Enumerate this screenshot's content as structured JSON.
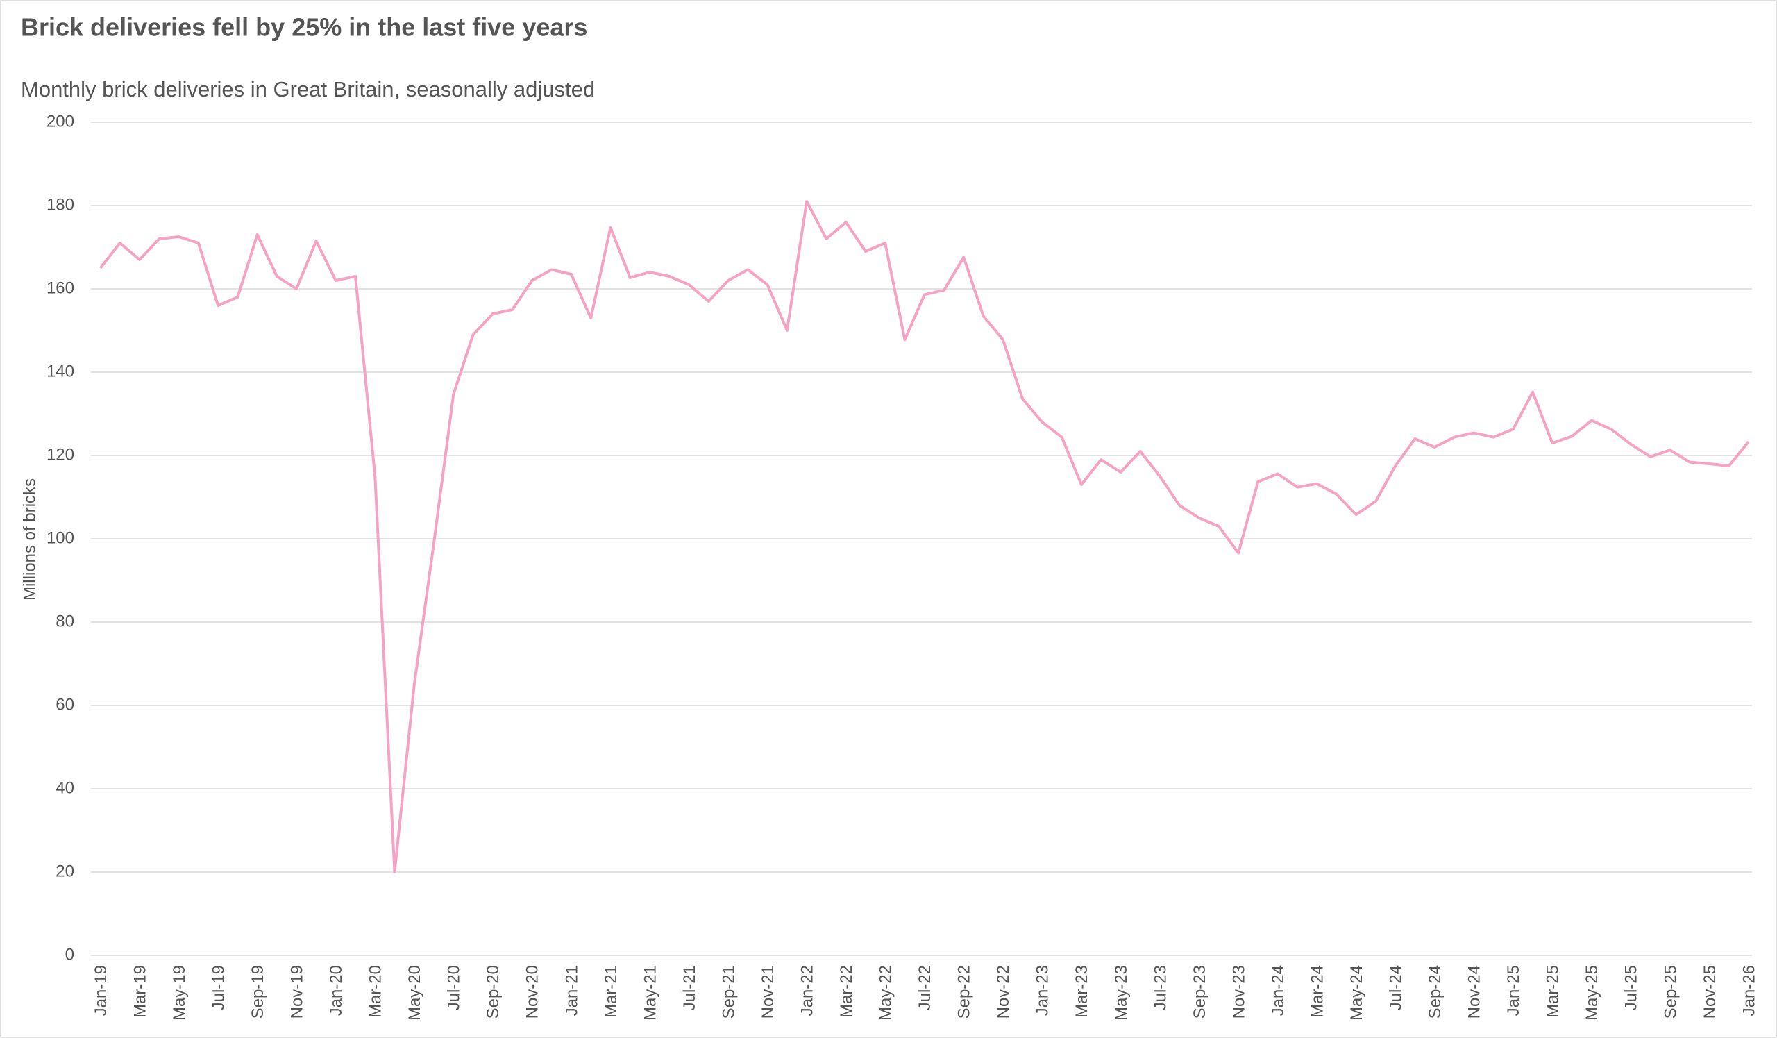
{
  "chart_data": {
    "type": "line",
    "title": "Brick deliveries fell by 25% in the last five years",
    "subtitle": "Monthly brick deliveries in Great Britain, seasonally adjusted",
    "y_label": "Millions of bricks",
    "color": "#f4a3c4",
    "grid": true,
    "ylim": [
      0,
      200
    ],
    "yticks": [
      0,
      20,
      40,
      60,
      80,
      100,
      120,
      140,
      160,
      180,
      200
    ],
    "categories": [
      "Jan-19",
      null,
      "Mar-19",
      null,
      "May-19",
      null,
      "Jul-19",
      null,
      "Sep-19",
      null,
      "Nov-19",
      null,
      "Jan-20",
      null,
      "Mar-20",
      null,
      "May-20",
      null,
      "Jul-20",
      null,
      "Sep-20",
      null,
      "Nov-20",
      null,
      "Jan-21",
      null,
      "Mar-21",
      null,
      "May-21",
      null,
      "Jul-21",
      null,
      "Sep-21",
      null,
      "Nov-21",
      null,
      "Jan-22",
      null,
      "Mar-22",
      null,
      "May-22",
      null,
      "Jul-22",
      null,
      "Sep-22",
      null,
      "Nov-22",
      null,
      "Jan-23",
      null,
      "Mar-23",
      null,
      "May-23",
      null,
      "Jul-23",
      null,
      "Sep-23",
      null,
      "Nov-23",
      null,
      "Jan-24",
      null,
      "Mar-24",
      null,
      "May-24",
      null,
      "Jul-24",
      null,
      "Sep-24",
      null,
      "Nov-24",
      null,
      "Jan-25",
      null,
      "Mar-25",
      null,
      "May-25",
      null,
      "Jul-25",
      null,
      "Sep-25",
      null,
      "Nov-25",
      null,
      "Jan-26"
    ],
    "values": [
      165,
      171,
      167,
      172,
      172.5,
      171,
      156,
      158,
      173,
      163,
      160,
      171.5,
      162,
      163,
      115,
      20,
      65,
      99,
      134.7,
      149,
      154,
      155,
      162,
      164.6,
      163.5,
      153,
      174.7,
      162.7,
      164,
      163,
      161,
      157,
      162,
      164.6,
      161,
      150,
      181,
      172,
      176,
      169,
      171,
      147.8,
      158.6,
      159.7,
      167.6,
      153.5,
      147.8,
      133.6,
      128,
      124.4,
      113,
      119,
      116,
      121,
      115,
      108,
      105,
      103,
      96.6,
      113.7,
      115.6,
      112.4,
      113.2,
      110.7,
      105.8,
      109,
      117.5,
      124,
      122,
      124.4,
      125.4,
      124.4,
      126.3,
      135.2,
      123,
      124.6,
      128.4,
      126.3,
      122.7,
      119.7,
      121.3,
      118.4,
      118,
      117.5,
      123.3
    ]
  }
}
